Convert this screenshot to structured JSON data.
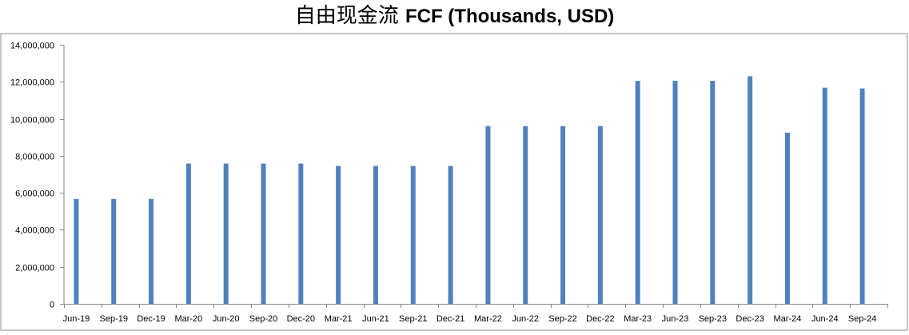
{
  "chart_data": {
    "type": "bar",
    "title_cjk": "自由现金流",
    "title_latin": "FCF (Thousands, USD)",
    "xlabel": "",
    "ylabel": "",
    "ylim": [
      0,
      14000000
    ],
    "yticks": [
      0,
      2000000,
      4000000,
      6000000,
      8000000,
      10000000,
      12000000,
      14000000
    ],
    "ytick_labels": [
      "0",
      "2,000,000",
      "4,000,000",
      "6,000,000",
      "8,000,000",
      "10,000,000",
      "12,000,000",
      "14,000,000"
    ],
    "grid": false,
    "legend": "none",
    "bar_color": "#4F81BD",
    "categories": [
      "Jun-19",
      "Sep-19",
      "Dec-19",
      "Mar-20",
      "Jun-20",
      "Sep-20",
      "Dec-20",
      "Mar-21",
      "Jun-21",
      "Sep-21",
      "Dec-21",
      "Mar-22",
      "Jun-22",
      "Sep-22",
      "Dec-22",
      "Mar-23",
      "Jun-23",
      "Sep-23",
      "Dec-23",
      "Mar-24",
      "Jun-24",
      "Sep-24"
    ],
    "values": [
      5670000,
      5670000,
      5670000,
      7580000,
      7580000,
      7580000,
      7580000,
      7450000,
      7450000,
      7450000,
      7450000,
      9600000,
      9600000,
      9600000,
      9600000,
      12050000,
      12050000,
      12050000,
      12300000,
      9250000,
      11680000,
      11640000
    ]
  }
}
